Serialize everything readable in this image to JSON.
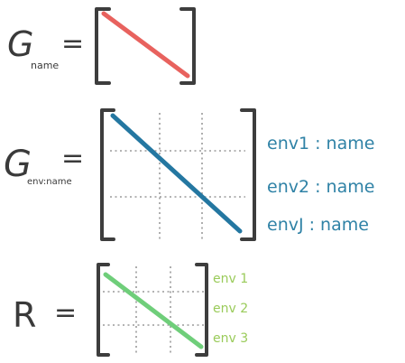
{
  "equations": [
    {
      "lhs_symbol": "G",
      "lhs_subscript": "name",
      "operator": "=",
      "diagonal_color": "#e8625e",
      "has_grid": false,
      "row_labels": []
    },
    {
      "lhs_symbol": "G",
      "lhs_subscript": "env:name",
      "operator": "=",
      "diagonal_color": "#2477a1",
      "has_grid": true,
      "label_color": "#2f82a6",
      "row_labels": [
        "env1 : name",
        "env2 : name",
        "envJ : name"
      ]
    },
    {
      "lhs_symbol": "R",
      "lhs_subscript": "",
      "operator": "=",
      "diagonal_color": "#6fce7a",
      "has_grid": true,
      "label_color": "#9acb5a",
      "row_labels": [
        "env 1",
        "env 2",
        "env 3"
      ]
    }
  ],
  "colors": {
    "ink": "#3a3a3a",
    "bracket": "#3d3d3d",
    "grid": "#9a9a9a"
  }
}
